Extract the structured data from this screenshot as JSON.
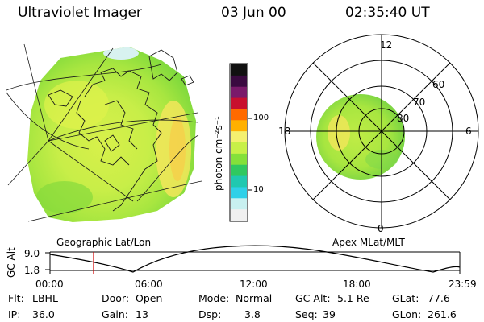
{
  "header": {
    "instrument": "Ultraviolet Imager",
    "date": "03 Jun 00",
    "time": "02:35:40 UT"
  },
  "colorbar": {
    "unit_label": "photon cm⁻²s⁻¹",
    "ticks": [
      "100",
      "10"
    ],
    "colors": [
      "#111111",
      "#3a0a40",
      "#7a1a6a",
      "#c8102e",
      "#ff6a00",
      "#ffb000",
      "#f4f070",
      "#c8f048",
      "#84e03a",
      "#30c860",
      "#20c8b0",
      "#30d0e8",
      "#c8f0f0",
      "#f0f0f0"
    ]
  },
  "left_panel": {
    "label": "Geographic Lat/Lon"
  },
  "right_panel": {
    "label": "Apex MLat/MLT",
    "mlt_labels": {
      "top": "12",
      "left": "18",
      "right": "6",
      "bottom": "0"
    },
    "lat_labels": [
      "60",
      "70",
      "80"
    ]
  },
  "altitude_plot": {
    "ylabel": "GC Alt",
    "yticks": [
      "9.0",
      "1.8"
    ],
    "xticks": [
      "00:00",
      "06:00",
      "12:00",
      "18:00",
      "23:59"
    ],
    "current_time_marker": "02:35"
  },
  "info": {
    "row1": {
      "flt_label": "Flt:",
      "flt_value": "LBHL",
      "door_label": "Door:",
      "door_value": "Open",
      "mode_label": "Mode:",
      "mode_value": "Normal",
      "gcalt_label": "GC Alt:",
      "gcalt_value": "5.1 Re",
      "glat_label": "GLat:",
      "glat_value": "77.6"
    },
    "row2": {
      "ip_label": "IP:",
      "ip_value": "36.0",
      "gain_label": "Gain:",
      "gain_value": "13",
      "dsp_label": "Dsp:",
      "dsp_value": "3.8",
      "seq_label": "Seq:",
      "seq_value": "39",
      "glon_label": "GLon:",
      "glon_value": "261.6"
    }
  }
}
